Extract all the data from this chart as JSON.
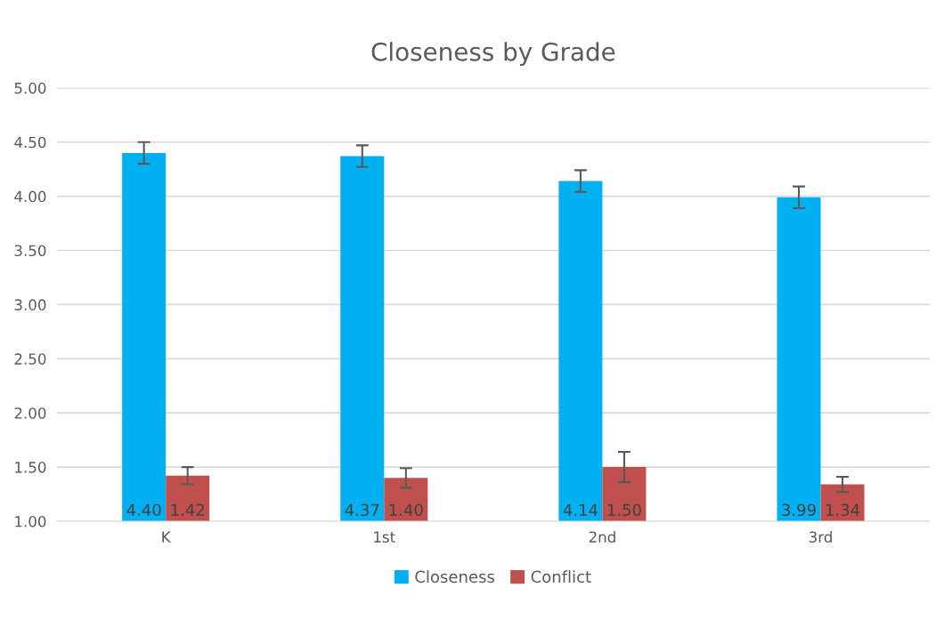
{
  "chart_data": {
    "type": "bar",
    "title": "Closeness by Grade",
    "categories": [
      "K",
      "1st",
      "2nd",
      "3rd"
    ],
    "series": [
      {
        "name": "Closeness",
        "color": "#00b0f0",
        "values": [
          4.4,
          4.37,
          4.14,
          3.99
        ],
        "value_labels": [
          "4.40",
          "4.37",
          "4.14",
          "3.99"
        ],
        "errors": [
          0.1,
          0.1,
          0.1,
          0.1
        ]
      },
      {
        "name": "Conflict",
        "color": "#c0504d",
        "values": [
          1.42,
          1.4,
          1.5,
          1.34
        ],
        "value_labels": [
          "1.42",
          "1.40",
          "1.50",
          "1.34"
        ],
        "errors": [
          0.08,
          0.09,
          0.14,
          0.07
        ]
      }
    ],
    "ylim": [
      1,
      5
    ],
    "yticks": [
      {
        "value": 1,
        "label": "1.00"
      },
      {
        "value": 1.5,
        "label": "1.50"
      },
      {
        "value": 2,
        "label": "2.00"
      },
      {
        "value": 2.5,
        "label": "2.50"
      },
      {
        "value": 3,
        "label": "3.00"
      },
      {
        "value": 3.5,
        "label": "3.50"
      },
      {
        "value": 4,
        "label": "4.00"
      },
      {
        "value": 4.5,
        "label": "4.50"
      },
      {
        "value": 5,
        "label": "5.00"
      }
    ],
    "grid": "y",
    "legend": "bottom"
  }
}
